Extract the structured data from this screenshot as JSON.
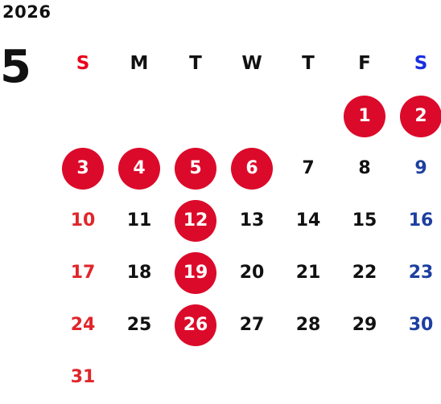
{
  "year": "2026",
  "month": "5",
  "weekdays": [
    "S",
    "M",
    "T",
    "W",
    "T",
    "F",
    "S"
  ],
  "days": [
    "1",
    "2",
    "3",
    "4",
    "5",
    "6",
    "7",
    "8",
    "9",
    "10",
    "11",
    "12",
    "13",
    "14",
    "15",
    "16",
    "17",
    "18",
    "19",
    "20",
    "21",
    "22",
    "23",
    "24",
    "25",
    "26",
    "27",
    "28",
    "29",
    "30",
    "31"
  ],
  "holidays": [
    "1",
    "2",
    "3",
    "4",
    "5",
    "6",
    "12",
    "19",
    "26"
  ],
  "colors": {
    "sunday": "#e0262b",
    "saturday": "#1e3fa0",
    "holiday_circle": "#dc0a2a",
    "text": "#111111"
  }
}
